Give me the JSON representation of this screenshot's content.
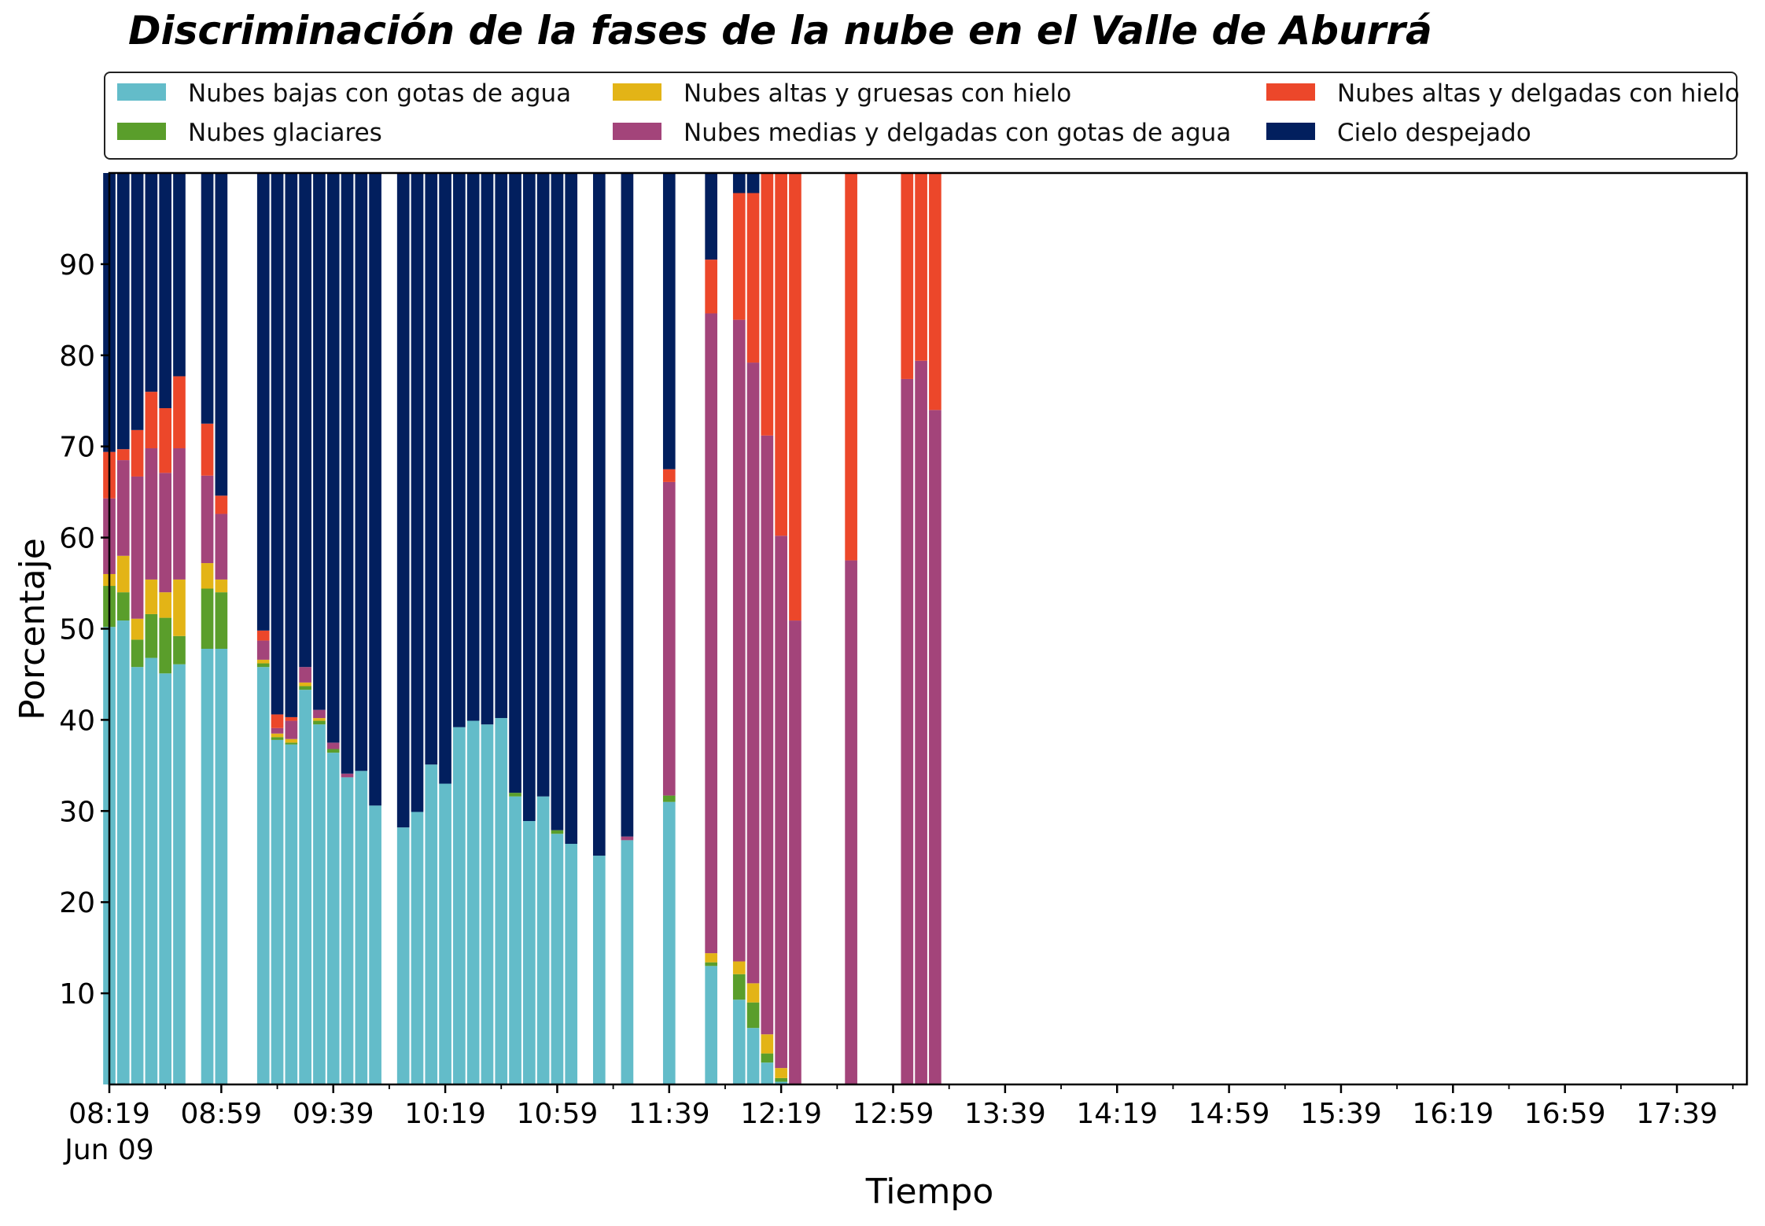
{
  "chart_data": {
    "type": "bar",
    "stacked": true,
    "title": "Discriminación de la fases de la nube en el Valle de Aburrá",
    "xlabel": "Tiempo",
    "ylabel": "Porcentaje",
    "ylim": [
      0,
      100
    ],
    "yticks": [
      10,
      20,
      30,
      40,
      50,
      60,
      70,
      80,
      90
    ],
    "x_start": "08:19",
    "x_step_minutes": 5,
    "x_span_minutes": 585,
    "xtick_labels": [
      "08:19",
      "08:59",
      "09:39",
      "10:19",
      "10:59",
      "11:39",
      "12:19",
      "12:59",
      "13:39",
      "14:19",
      "14:59",
      "15:39",
      "16:19",
      "16:59",
      "17:39"
    ],
    "xtick_date": "Jun 09",
    "grid": false,
    "legend_position": "top",
    "series": [
      {
        "name": "Nubes bajas con gotas de agua",
        "color": "#63BCC9"
      },
      {
        "name": "Nubes glaciares",
        "color": "#5A9E2B"
      },
      {
        "name": "Nubes altas y gruesas con hielo",
        "color": "#E3B416"
      },
      {
        "name": "Nubes medias y delgadas con gotas de agua",
        "color": "#A3447A"
      },
      {
        "name": "Nubes altas y delgadas con hielo",
        "color": "#EC472A"
      },
      {
        "name": "Cielo despejado",
        "color": "#021F5E"
      }
    ],
    "bars": [
      {
        "time": "08:19",
        "values": [
          50.2,
          4.5,
          1.3,
          8.3,
          5.1,
          30.6
        ]
      },
      {
        "time": "08:24",
        "values": [
          50.9,
          3.1,
          4.0,
          10.5,
          1.2,
          30.3
        ]
      },
      {
        "time": "08:29",
        "values": [
          45.8,
          3.0,
          2.3,
          15.6,
          5.1,
          28.2
        ]
      },
      {
        "time": "08:34",
        "values": [
          46.8,
          4.8,
          3.8,
          14.4,
          6.2,
          24.0
        ]
      },
      {
        "time": "08:39",
        "values": [
          45.1,
          6.1,
          2.8,
          13.1,
          7.1,
          25.8
        ]
      },
      {
        "time": "08:44",
        "values": [
          46.1,
          3.1,
          6.2,
          14.4,
          7.9,
          22.3
        ]
      },
      {
        "time": "08:54",
        "values": [
          47.8,
          6.6,
          2.8,
          9.6,
          5.7,
          27.5
        ]
      },
      {
        "time": "08:59",
        "values": [
          47.8,
          6.2,
          1.4,
          7.2,
          2.0,
          35.4
        ]
      },
      {
        "time": "09:14",
        "values": [
          45.8,
          0.4,
          0.4,
          2.1,
          1.1,
          50.2
        ]
      },
      {
        "time": "09:19",
        "values": [
          37.8,
          0.3,
          0.4,
          0.6,
          1.5,
          59.4
        ]
      },
      {
        "time": "09:24",
        "values": [
          37.3,
          0.2,
          0.4,
          2.0,
          0.4,
          59.7
        ]
      },
      {
        "time": "09:29",
        "values": [
          43.3,
          0.4,
          0.4,
          1.7,
          0.0,
          54.2
        ]
      },
      {
        "time": "09:34",
        "values": [
          39.5,
          0.4,
          0.3,
          0.9,
          0.0,
          58.9
        ]
      },
      {
        "time": "09:39",
        "values": [
          36.4,
          0.4,
          0.0,
          0.7,
          0.0,
          62.5
        ]
      },
      {
        "time": "09:44",
        "values": [
          33.7,
          0.0,
          0.0,
          0.4,
          0.0,
          65.9
        ]
      },
      {
        "time": "09:49",
        "values": [
          34.4,
          0.0,
          0.0,
          0.0,
          0.0,
          65.6
        ]
      },
      {
        "time": "09:54",
        "values": [
          30.6,
          0.0,
          0.0,
          0.0,
          0.0,
          69.4
        ]
      },
      {
        "time": "10:04",
        "values": [
          28.2,
          0.0,
          0.0,
          0.0,
          0.0,
          71.8
        ]
      },
      {
        "time": "10:09",
        "values": [
          29.9,
          0.0,
          0.0,
          0.0,
          0.0,
          70.1
        ]
      },
      {
        "time": "10:14",
        "values": [
          35.1,
          0.0,
          0.0,
          0.0,
          0.0,
          64.9
        ]
      },
      {
        "time": "10:19",
        "values": [
          33.0,
          0.0,
          0.0,
          0.0,
          0.0,
          67.0
        ]
      },
      {
        "time": "10:24",
        "values": [
          39.2,
          0.0,
          0.0,
          0.0,
          0.0,
          60.8
        ]
      },
      {
        "time": "10:29",
        "values": [
          39.9,
          0.0,
          0.0,
          0.0,
          0.0,
          60.1
        ]
      },
      {
        "time": "10:34",
        "values": [
          39.5,
          0.0,
          0.0,
          0.0,
          0.0,
          60.5
        ]
      },
      {
        "time": "10:39",
        "values": [
          40.2,
          0.0,
          0.0,
          0.0,
          0.0,
          59.8
        ]
      },
      {
        "time": "10:44",
        "values": [
          31.6,
          0.4,
          0.0,
          0.0,
          0.0,
          68.0
        ]
      },
      {
        "time": "10:49",
        "values": [
          28.9,
          0.0,
          0.0,
          0.0,
          0.0,
          71.1
        ]
      },
      {
        "time": "10:54",
        "values": [
          31.6,
          0.0,
          0.0,
          0.0,
          0.0,
          68.4
        ]
      },
      {
        "time": "10:59",
        "values": [
          27.5,
          0.4,
          0.0,
          0.0,
          0.0,
          72.1
        ]
      },
      {
        "time": "11:04",
        "values": [
          26.4,
          0.0,
          0.0,
          0.0,
          0.0,
          73.6
        ]
      },
      {
        "time": "11:14",
        "values": [
          25.1,
          0.0,
          0.0,
          0.0,
          0.0,
          74.9
        ]
      },
      {
        "time": "11:24",
        "values": [
          26.8,
          0.0,
          0.0,
          0.4,
          0.0,
          72.8
        ]
      },
      {
        "time": "11:39",
        "values": [
          31.0,
          0.7,
          0.0,
          34.4,
          1.4,
          32.5
        ]
      },
      {
        "time": "11:54",
        "values": [
          13.0,
          0.4,
          1.0,
          70.2,
          5.9,
          9.5
        ]
      },
      {
        "time": "12:04",
        "values": [
          9.3,
          2.8,
          1.4,
          70.4,
          13.9,
          2.2
        ]
      },
      {
        "time": "12:09",
        "values": [
          6.2,
          2.8,
          2.1,
          68.1,
          18.6,
          2.2
        ]
      },
      {
        "time": "12:14",
        "values": [
          2.4,
          1.0,
          2.1,
          65.7,
          28.8,
          0.5
        ]
      },
      {
        "time": "12:19",
        "values": [
          0.3,
          0.4,
          1.1,
          58.4,
          39.8,
          0.0
        ]
      },
      {
        "time": "12:24",
        "values": [
          0.0,
          0.0,
          0.0,
          50.9,
          49.1,
          0.0
        ]
      },
      {
        "time": "12:44",
        "values": [
          0.0,
          0.0,
          0.0,
          57.5,
          42.5,
          0.0
        ]
      },
      {
        "time": "13:04",
        "values": [
          0.0,
          0.0,
          0.0,
          77.4,
          22.6,
          0.0
        ]
      },
      {
        "time": "13:09",
        "values": [
          0.0,
          0.0,
          0.0,
          79.4,
          20.6,
          0.0
        ]
      },
      {
        "time": "13:14",
        "values": [
          0.0,
          0.0,
          0.0,
          74.0,
          26.0,
          0.0
        ]
      }
    ]
  }
}
